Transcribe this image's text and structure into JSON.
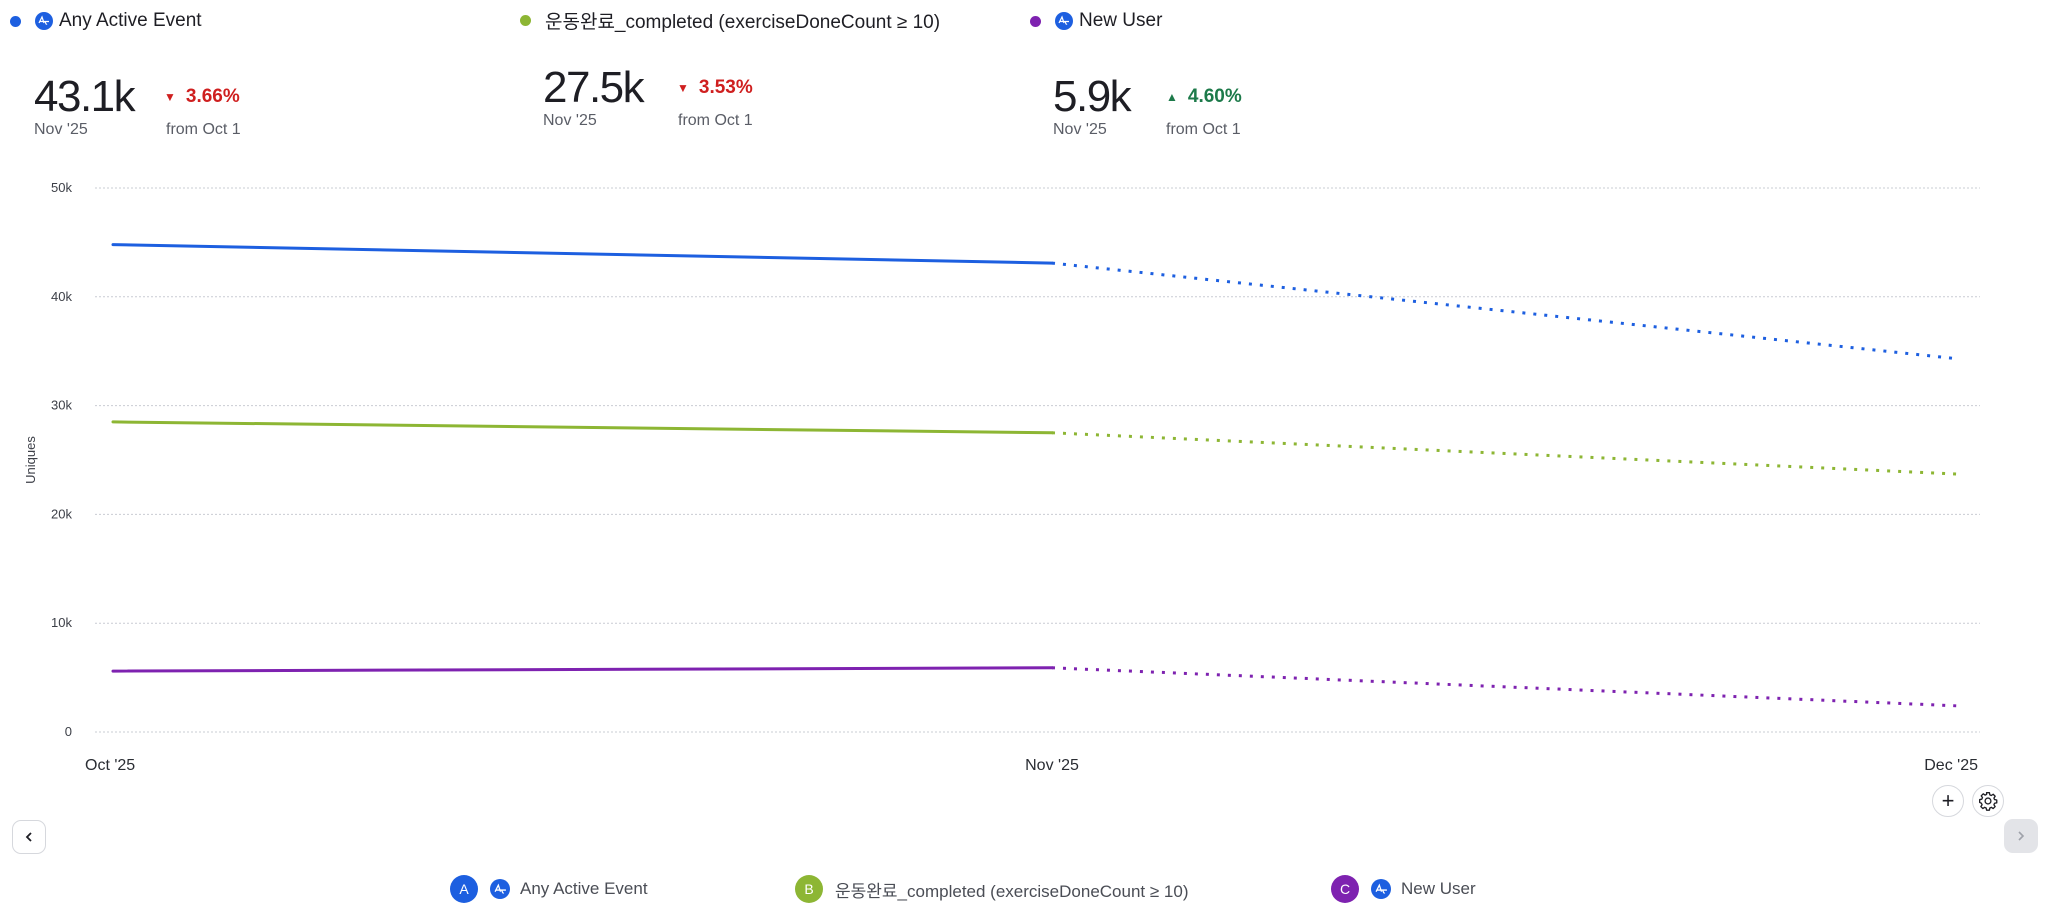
{
  "metrics": [
    {
      "id": "A",
      "title": "Any Active Event",
      "color": "#1d5fe0",
      "has_amp_icon": true,
      "value": "43.1k",
      "period": "Nov '25",
      "delta": "3.66%",
      "direction": "down",
      "from": "from Oct 1"
    },
    {
      "id": "B",
      "title": "운동완료_completed (exerciseDoneCount ≥ 10)",
      "color": "#8db634",
      "has_amp_icon": false,
      "value": "27.5k",
      "period": "Nov '25",
      "delta": "3.53%",
      "direction": "down",
      "from": "from Oct 1"
    },
    {
      "id": "C",
      "title": "New User",
      "color": "#7e22b0",
      "has_amp_icon": true,
      "value": "5.9k",
      "period": "Nov '25",
      "delta": "4.60%",
      "direction": "up",
      "from": "from Oct 1"
    }
  ],
  "colors": {
    "down": "#cf1f1f",
    "up": "#1d7a4a",
    "grid": "#c9ccd3"
  },
  "chart_data": {
    "type": "line",
    "x": [
      "Oct '25",
      "Nov '25",
      "Dec '25"
    ],
    "ylabel": "Uniques",
    "xlabel": "",
    "ylim": [
      0,
      50000
    ],
    "yticks": [
      0,
      10000,
      20000,
      30000,
      40000,
      50000
    ],
    "ytick_labels": [
      "0",
      "10k",
      "20k",
      "30k",
      "40k",
      "50k"
    ],
    "grid": true,
    "projected_from_index": 1,
    "series": [
      {
        "name": "Any Active Event",
        "letter": "A",
        "color": "#1d5fe0",
        "values": [
          44800,
          43100,
          34300
        ]
      },
      {
        "name": "운동완료_completed (exerciseDoneCount ≥ 10)",
        "letter": "B",
        "color": "#8db634",
        "values": [
          28500,
          27500,
          23700
        ]
      },
      {
        "name": "New User",
        "letter": "C",
        "color": "#7e22b0",
        "values": [
          5600,
          5900,
          2400
        ]
      }
    ],
    "note": "Segment after Nov '25 is a dotted (projected/incomplete) line"
  },
  "controls": {
    "add_label": "+",
    "settings_icon": "gear-icon",
    "prev_icon": "chevron-left-icon",
    "next_icon": "chevron-right-icon"
  },
  "legend": [
    {
      "letter": "A",
      "label": "Any Active Event",
      "color": "#1d5fe0",
      "has_amp_icon": true
    },
    {
      "letter": "B",
      "label": "운동완료_completed (exerciseDoneCount ≥ 10)",
      "color": "#8db634",
      "has_amp_icon": false
    },
    {
      "letter": "C",
      "label": "New User",
      "color": "#7e22b0",
      "has_amp_icon": true
    }
  ]
}
